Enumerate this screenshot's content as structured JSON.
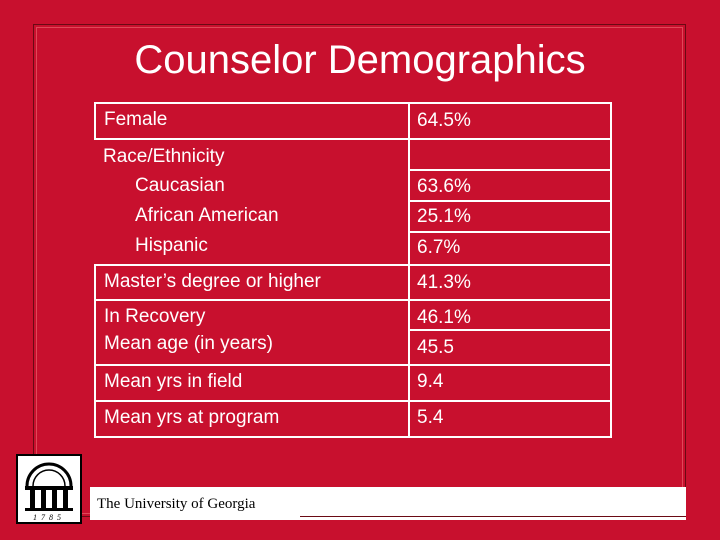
{
  "title": "Counselor Demographics",
  "rows": [
    {
      "label": "Female",
      "value": "64.5%"
    },
    {
      "label": "Race/Ethnicity",
      "value": ""
    },
    {
      "label": "Caucasian",
      "value": "63.6%"
    },
    {
      "label": "African American",
      "value": "25.1%"
    },
    {
      "label": "Hispanic",
      "value": "6.7%"
    },
    {
      "label": "Master’s degree or higher",
      "value": "41.3%"
    },
    {
      "label": "In Recovery",
      "value": "46.1%"
    },
    {
      "label": "Mean age (in years)",
      "value": "45.5"
    },
    {
      "label": "Mean yrs in field",
      "value": "9.4"
    },
    {
      "label": "Mean yrs at program",
      "value": "5.4"
    }
  ],
  "footer": {
    "university": "The University of Georgia",
    "logo_year": "1785"
  },
  "colors": {
    "background": "#c8102e",
    "text": "#ffffff"
  }
}
